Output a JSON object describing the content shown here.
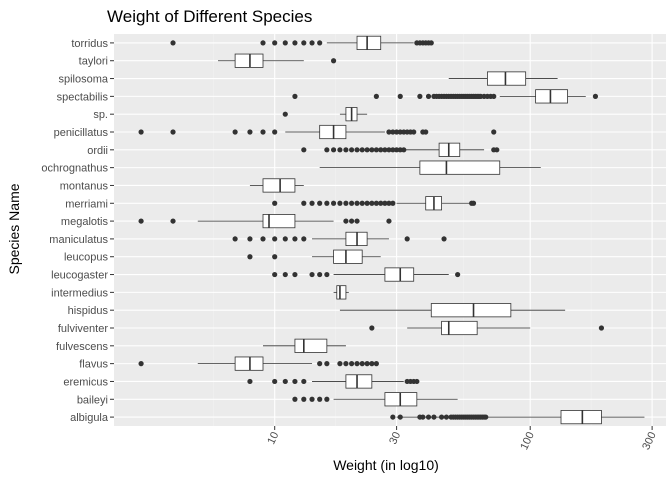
{
  "chart_data": {
    "type": "boxplot",
    "title": "Weight of Different Species",
    "xlabel": "Weight (in log10)",
    "ylabel": "Species Name",
    "x_scale": "log10",
    "xlim": [
      2.35,
      340
    ],
    "x_ticks": [
      10,
      30,
      100,
      300
    ],
    "x_tick_labels": [
      "10",
      "30",
      "100",
      "300"
    ],
    "grid": true,
    "legend": "none",
    "colors": {
      "panel_background": "#ebebeb",
      "grid_major": "#ffffff",
      "grid_minor": "#f2f2f2",
      "box_fill": "#ffffff",
      "box_stroke": "#333333",
      "outlier": "#333333"
    },
    "categories": [
      "albigula",
      "baileyi",
      "eremicus",
      "flavus",
      "fulvescens",
      "fulviventer",
      "hispidus",
      "intermedius",
      "leucogaster",
      "leucopus",
      "maniculatus",
      "megalotis",
      "merriami",
      "montanus",
      "ochrognathus",
      "ordii",
      "penicillatus",
      "sp.",
      "spectabilis",
      "spilosoma",
      "taylori",
      "torridus"
    ],
    "series": [
      {
        "category": "albigula",
        "whisker_low": 30,
        "q1": 132,
        "median": 160,
        "q3": 190,
        "whisker_high": 280,
        "outliers": [
          29,
          31,
          37,
          38,
          40,
          42,
          45,
          47,
          49,
          50,
          51,
          52,
          53,
          54,
          55,
          56,
          57,
          58,
          59,
          60,
          61,
          62,
          63,
          64,
          65,
          66,
          67
        ]
      },
      {
        "category": "baileyi",
        "whisker_low": 17,
        "q1": 27,
        "median": 31,
        "q3": 36,
        "whisker_high": 52,
        "outliers": [
          12,
          13,
          14,
          15,
          16
        ]
      },
      {
        "category": "eremicus",
        "whisker_low": 14,
        "q1": 19,
        "median": 21,
        "q3": 24,
        "whisker_high": 32,
        "outliers": [
          8,
          10,
          11,
          12,
          13,
          33,
          34,
          35,
          36
        ]
      },
      {
        "category": "flavus",
        "whisker_low": 5,
        "q1": 7,
        "median": 8,
        "q3": 9,
        "whisker_high": 14,
        "outliers": [
          3,
          15,
          16,
          18,
          19,
          20,
          21,
          22,
          23,
          24,
          25
        ]
      },
      {
        "category": "fulvescens",
        "whisker_low": 9,
        "q1": 12,
        "median": 13,
        "q3": 16,
        "whisker_high": 19,
        "outliers": []
      },
      {
        "category": "fulviventer",
        "whisker_low": 33,
        "q1": 45,
        "median": 48,
        "q3": 62,
        "whisker_high": 100,
        "outliers": [
          24,
          190
        ]
      },
      {
        "category": "hispidus",
        "whisker_low": 18,
        "q1": 41,
        "median": 60,
        "q3": 84,
        "whisker_high": 137,
        "outliers": []
      },
      {
        "category": "intermedius",
        "whisker_low": 17,
        "q1": 17.5,
        "median": 18,
        "q3": 19,
        "whisker_high": 19.5,
        "outliers": []
      },
      {
        "category": "leucogaster",
        "whisker_low": 17,
        "q1": 27,
        "median": 31,
        "q3": 35,
        "whisker_high": 48,
        "outliers": [
          10,
          11,
          12,
          14,
          15,
          16,
          52
        ]
      },
      {
        "category": "leucopus",
        "whisker_low": 14,
        "q1": 17,
        "median": 19,
        "q3": 22,
        "whisker_high": 26,
        "outliers": [
          8,
          10
        ]
      },
      {
        "category": "maniculatus",
        "whisker_low": 14,
        "q1": 19,
        "median": 21,
        "q3": 23,
        "whisker_high": 28,
        "outliers": [
          7,
          8,
          9,
          10,
          11,
          12,
          13,
          33,
          46
        ]
      },
      {
        "category": "megalotis",
        "whisker_low": 5,
        "q1": 9,
        "median": 9.5,
        "q3": 12,
        "whisker_high": 17,
        "outliers": [
          3,
          4,
          19,
          20,
          21,
          28
        ]
      },
      {
        "category": "merriami",
        "whisker_low": 30,
        "q1": 39,
        "median": 42,
        "q3": 45,
        "whisker_high": 58,
        "outliers": [
          10,
          13,
          14,
          15,
          16,
          17,
          18,
          19,
          20,
          21,
          22,
          23,
          24,
          25,
          26,
          27,
          28,
          29,
          59,
          60
        ]
      },
      {
        "category": "montanus",
        "whisker_low": 8,
        "q1": 9,
        "median": 10.5,
        "q3": 12,
        "whisker_high": 13,
        "outliers": []
      },
      {
        "category": "ochrognathus",
        "whisker_low": 15,
        "q1": 37,
        "median": 47,
        "q3": 76,
        "whisker_high": 110,
        "outliers": []
      },
      {
        "category": "ordii",
        "whisker_low": 32,
        "q1": 44,
        "median": 48,
        "q3": 53,
        "whisker_high": 66,
        "outliers": [
          13,
          16,
          17,
          18,
          19,
          20,
          21,
          22,
          23,
          24,
          25,
          26,
          27,
          28,
          29,
          30,
          31,
          32,
          72,
          74
        ]
      },
      {
        "category": "penicillatus",
        "whisker_low": 11,
        "q1": 15,
        "median": 17,
        "q3": 19,
        "whisker_high": 27,
        "outliers": [
          3,
          4,
          7,
          8,
          9,
          10,
          28,
          29,
          30,
          31,
          32,
          33,
          34,
          35,
          38,
          39,
          72
        ]
      },
      {
        "category": "sp.",
        "whisker_low": 18,
        "q1": 19,
        "median": 20,
        "q3": 21,
        "whisker_high": 23,
        "outliers": [
          11
        ]
      },
      {
        "category": "spectabilis",
        "whisker_low": 76,
        "q1": 105,
        "median": 120,
        "q3": 140,
        "whisker_high": 165,
        "outliers": [
          12,
          25,
          31,
          37,
          40,
          42,
          43,
          44,
          45,
          46,
          47,
          48,
          49,
          50,
          51,
          52,
          53,
          54,
          55,
          56,
          57,
          58,
          59,
          60,
          61,
          62,
          63,
          64,
          66,
          68,
          70,
          72,
          180
        ]
      },
      {
        "category": "spilosoma",
        "whisker_low": 48,
        "q1": 68,
        "median": 80,
        "q3": 96,
        "whisker_high": 128,
        "outliers": []
      },
      {
        "category": "taylori",
        "whisker_low": 6,
        "q1": 7,
        "median": 8,
        "q3": 9,
        "whisker_high": 13,
        "outliers": [
          17
        ]
      },
      {
        "category": "torridus",
        "whisker_low": 16,
        "q1": 21,
        "median": 23,
        "q3": 26,
        "whisker_high": 35,
        "outliers": [
          4,
          9,
          10,
          11,
          12,
          13,
          14,
          15,
          36,
          37,
          38,
          39,
          40,
          41
        ]
      }
    ]
  }
}
